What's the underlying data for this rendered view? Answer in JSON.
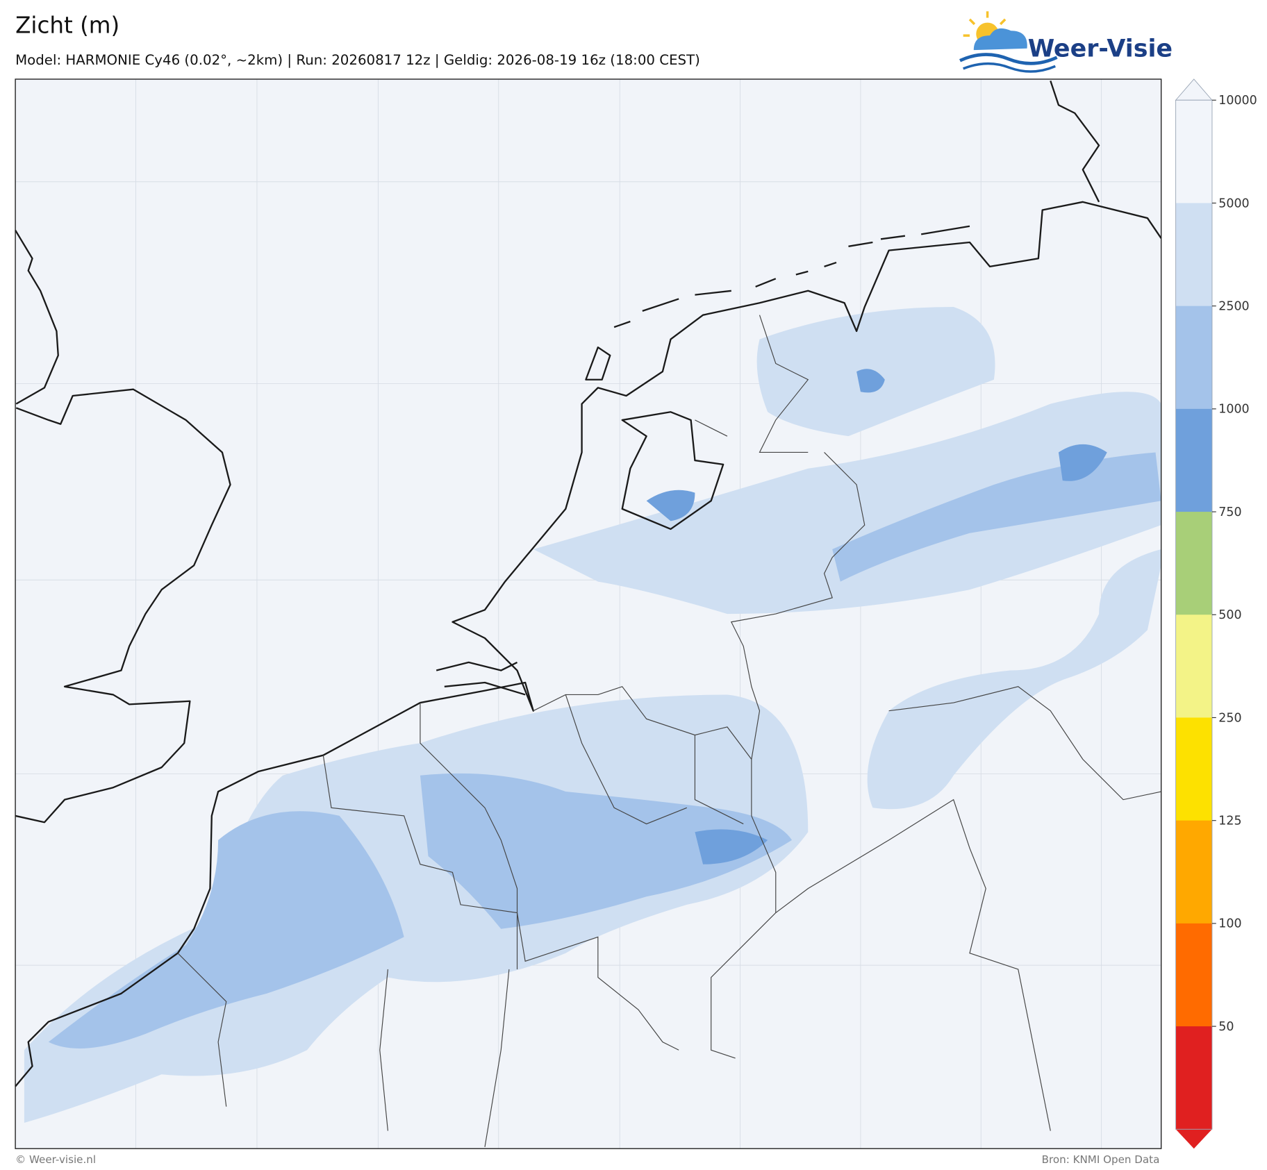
{
  "header": {
    "title": "Zicht (m)",
    "subtitle": "Model: HARMONIE Cy46 (0.02°, ~2km)  |  Run: 20260817 12z  |  Geldig: 2026-08-19 16z (18:00 CEST)",
    "logo": "Weer-Visie"
  },
  "colorbar": {
    "ticks": [
      10000,
      5000,
      2500,
      1000,
      750,
      500,
      250,
      125,
      100,
      50
    ],
    "colors": [
      "#f2f5fa",
      "#cfdff2",
      "#a4c3ea",
      "#6fa0dc",
      "#a8cf78",
      "#f3f387",
      "#fde100",
      "#ffa800",
      "#ff6b00",
      "#e02020"
    ]
  },
  "footer": {
    "left": "© Weer-visie.nl",
    "right": "Bron: KNMI Open Data"
  }
}
